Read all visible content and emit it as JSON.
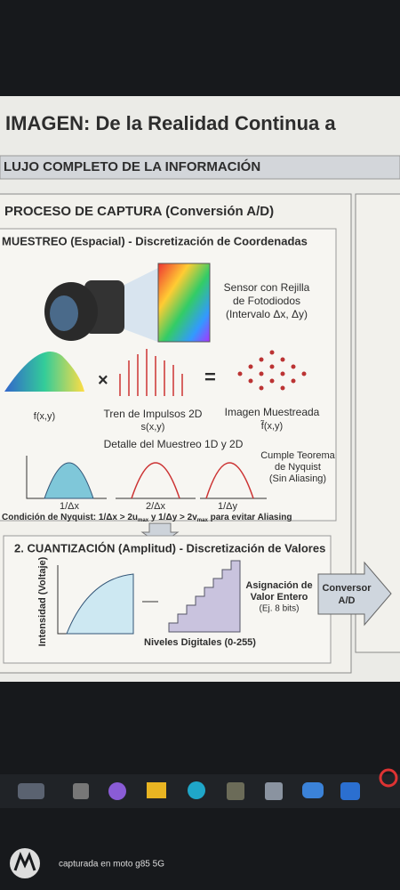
{
  "header": {
    "title": "IMAGEN: De la Realidad Continua a",
    "subtitle": "LUJO COMPLETO DE LA INFORMACIÓN"
  },
  "capture": {
    "title": "PROCESO DE CAPTURA (Conversión A/D)",
    "sampling": {
      "title": "MUESTREO (Espacial) - Discretización de Coordenadas",
      "sensor": [
        "Sensor con Rejilla",
        "de Fotodiodos",
        "(Intervalo Δx, Δy)"
      ],
      "signal": "f(x,y)",
      "impulses": [
        "Tren de Impulsos 2D",
        "s(x,y)"
      ],
      "sampled": [
        "Imagen Muestreada",
        "f̃(x,y)"
      ],
      "detail": "Detalle del Muestreo 1D y 2D",
      "freq": [
        "1/Δx",
        "2/Δx",
        "1/Δy"
      ],
      "nyquist_note": [
        "Cumple Teorema",
        "de Nyquist",
        "(Sin Aliasing)"
      ],
      "condition": [
        "Condición de Nyquist: 1/Δx > 2u",
        "max",
        " y 1/Δy > 2v",
        "max",
        " para evitar Aliasing"
      ]
    },
    "quantization": {
      "title": "2. CUANTIZACIÓN (Amplitud) - Discretización de Valores",
      "y_axis": "Intensidad (Voltaje)",
      "assign": [
        "Asignación de",
        "Valor Entero",
        "(Ej. 8 bits)"
      ],
      "levels": "Niveles Digitales (0-255)",
      "converter": [
        "Conversor",
        "A/D"
      ]
    }
  },
  "footer": {
    "caption": "capturada en moto g85 5G"
  }
}
